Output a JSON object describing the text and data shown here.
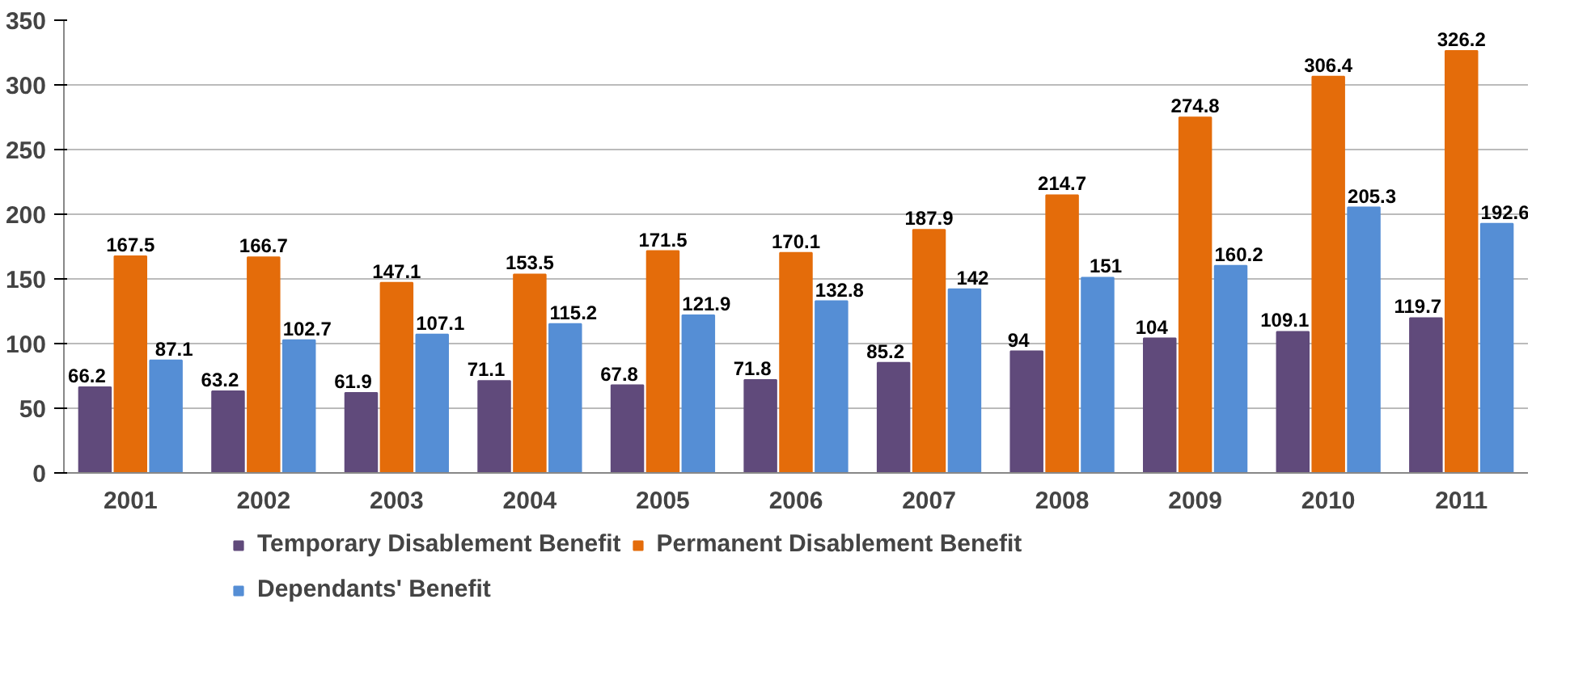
{
  "chart_data": {
    "type": "bar",
    "categories": [
      "2001",
      "2002",
      "2003",
      "2004",
      "2005",
      "2006",
      "2007",
      "2008",
      "2009",
      "2010",
      "2011"
    ],
    "series": [
      {
        "name": "Temporary Disablement Benefit",
        "color": "#604a7b",
        "values": [
          66.2,
          63.2,
          61.9,
          71.1,
          67.8,
          71.8,
          85.2,
          94,
          104,
          109.1,
          119.7
        ]
      },
      {
        "name": "Permanent Disablement Benefit",
        "color": "#e46c0a",
        "values": [
          167.5,
          166.7,
          147.1,
          153.5,
          171.5,
          170.1,
          187.9,
          214.7,
          274.8,
          306.4,
          326.2
        ]
      },
      {
        "name": "Dependants' Benefit",
        "color": "#558ed5",
        "values": [
          87.1,
          102.7,
          107.1,
          115.2,
          121.9,
          132.8,
          142,
          151,
          160.2,
          205.3,
          192.6
        ]
      }
    ],
    "ylim": [
      0,
      350
    ],
    "yticks": [
      0,
      50,
      100,
      150,
      200,
      250,
      300,
      350
    ],
    "grid": "y",
    "legend": "bottom",
    "data_labels": true
  }
}
